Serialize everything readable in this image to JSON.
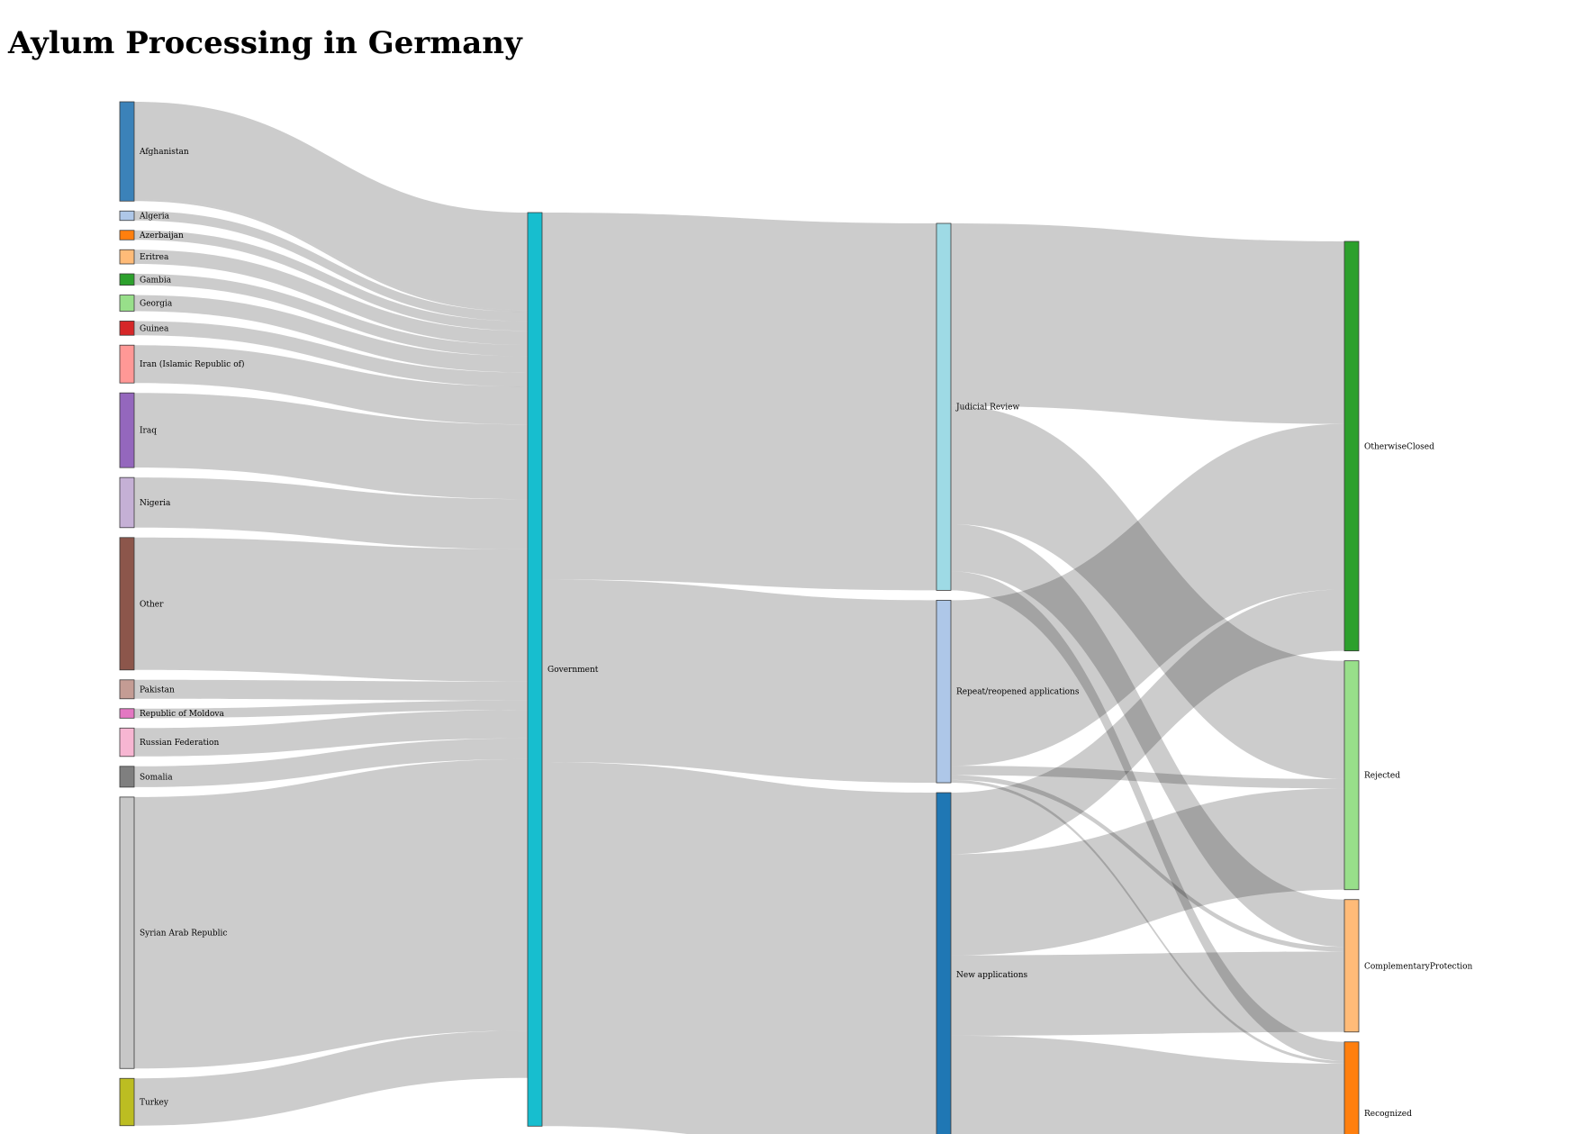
{
  "chart_data": {
    "type": "sankey",
    "title": "Aylum Processing in Germany",
    "units": "",
    "columns": [
      [
        "Afghanistan",
        "Algeria",
        "Azerbaijan",
        "Eritrea",
        "Gambia",
        "Georgia",
        "Guinea",
        "Iran (Islamic Republic of)",
        "Iraq",
        "Nigeria",
        "Other",
        "Pakistan",
        "Republic of Moldova",
        "Russian Federation",
        "Somalia",
        "Syrian Arab Republic",
        "Turkey"
      ],
      [
        "Government"
      ],
      [
        "Judicial Review",
        "Repeat/reopened applications",
        "New applications"
      ],
      [
        "OtherwiseClosed",
        "Rejected",
        "ComplementaryProtection",
        "Recognized"
      ]
    ],
    "nodes": [
      {
        "name": "Afghanistan",
        "color": "#3b82b9"
      },
      {
        "name": "Algeria",
        "color": "#aec7e8"
      },
      {
        "name": "Azerbaijan",
        "color": "#ff7f0e"
      },
      {
        "name": "Eritrea",
        "color": "#ffbb78"
      },
      {
        "name": "Gambia",
        "color": "#2ca02c"
      },
      {
        "name": "Georgia",
        "color": "#98df8a"
      },
      {
        "name": "Guinea",
        "color": "#d62728"
      },
      {
        "name": "Iran (Islamic Republic of)",
        "color": "#ff9896"
      },
      {
        "name": "Iraq",
        "color": "#9467bd"
      },
      {
        "name": "Nigeria",
        "color": "#c5b0d5"
      },
      {
        "name": "Other",
        "color": "#8c564b"
      },
      {
        "name": "Pakistan",
        "color": "#c49c94"
      },
      {
        "name": "Republic of Moldova",
        "color": "#e377c2"
      },
      {
        "name": "Russian Federation",
        "color": "#f7b6d2"
      },
      {
        "name": "Somalia",
        "color": "#7f7f7f"
      },
      {
        "name": "Syrian Arab Republic",
        "color": "#c7c7c7"
      },
      {
        "name": "Turkey",
        "color": "#bcbd22"
      },
      {
        "name": "Government",
        "color": "#17becf"
      },
      {
        "name": "Judicial Review",
        "color": "#9edae5"
      },
      {
        "name": "Repeat/reopened applications",
        "color": "#aec7e8"
      },
      {
        "name": "New applications",
        "color": "#1f77b4"
      },
      {
        "name": "OtherwiseClosed",
        "color": "#2ca02c"
      },
      {
        "name": "Rejected",
        "color": "#98df8a"
      },
      {
        "name": "ComplementaryProtection",
        "color": "#ffbb78"
      },
      {
        "name": "Recognized",
        "color": "#ff7f0e"
      }
    ],
    "links": [
      {
        "source": "Afghanistan",
        "target": "Government",
        "value": 103
      },
      {
        "source": "Afghanistan",
        "target": "Government",
        "value": 2
      },
      {
        "source": "Algeria",
        "target": "Government",
        "value": 10
      },
      {
        "source": "Azerbaijan",
        "target": "Government",
        "value": 10
      },
      {
        "source": "Eritrea",
        "target": "Government",
        "value": 15
      },
      {
        "source": "Gambia",
        "target": "Government",
        "value": 12
      },
      {
        "source": "Georgia",
        "target": "Government",
        "value": 17
      },
      {
        "source": "Guinea",
        "target": "Government",
        "value": 15
      },
      {
        "source": "Iran (Islamic Republic of)",
        "target": "Government",
        "value": 40
      },
      {
        "source": "Iraq",
        "target": "Government",
        "value": 79
      },
      {
        "source": "Nigeria",
        "target": "Government",
        "value": 53
      },
      {
        "source": "Other",
        "target": "Government",
        "value": 140
      },
      {
        "source": "Pakistan",
        "target": "Government",
        "value": 20
      },
      {
        "source": "Republic of Moldova",
        "target": "Government",
        "value": 10
      },
      {
        "source": "Russian Federation",
        "target": "Government",
        "value": 30
      },
      {
        "source": "Somalia",
        "target": "Government",
        "value": 22
      },
      {
        "source": "Syrian Arab Republic",
        "target": "Government",
        "value": 287
      },
      {
        "source": "Turkey",
        "target": "Government",
        "value": 50
      },
      {
        "source": "Government",
        "target": "Judicial Review",
        "value": 388
      },
      {
        "source": "Government",
        "target": "Repeat/reopened applications",
        "value": 193
      },
      {
        "source": "Government",
        "target": "New applications",
        "value": 385
      },
      {
        "source": "Judicial Review",
        "target": "OtherwiseClosed",
        "value": 193
      },
      {
        "source": "Judicial Review",
        "target": "Rejected",
        "value": 125
      },
      {
        "source": "Judicial Review",
        "target": "ComplementaryProtection",
        "value": 50
      },
      {
        "source": "Judicial Review",
        "target": "Recognized",
        "value": 20
      },
      {
        "source": "Repeat/reopened applications",
        "target": "OtherwiseClosed",
        "value": 175
      },
      {
        "source": "Repeat/reopened applications",
        "target": "Rejected",
        "value": 10
      },
      {
        "source": "Repeat/reopened applications",
        "target": "ComplementaryProtection",
        "value": 5
      },
      {
        "source": "Repeat/reopened applications",
        "target": "Recognized",
        "value": 3
      },
      {
        "source": "New applications",
        "target": "OtherwiseClosed",
        "value": 65
      },
      {
        "source": "New applications",
        "target": "Rejected",
        "value": 107
      },
      {
        "source": "New applications",
        "target": "ComplementaryProtection",
        "value": 85
      },
      {
        "source": "New applications",
        "target": "Recognized",
        "value": 128
      }
    ]
  }
}
